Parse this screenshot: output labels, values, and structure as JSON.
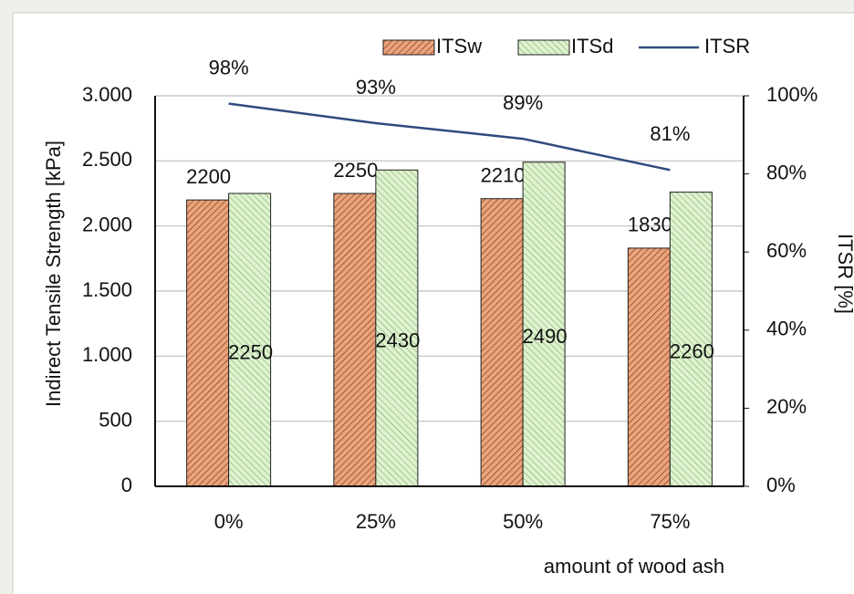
{
  "chart_data": {
    "type": "bar",
    "y_label": "Indirect  Tensile Strength   [kPa]",
    "y2_label": "ITSR [%]",
    "x_label": "amount of wood ash",
    "categories": [
      "0%",
      "25%",
      "50%",
      "75%"
    ],
    "series": [
      {
        "name": "ITSw",
        "color": "#e9a47c",
        "values": [
          2200,
          2250,
          2210,
          1830
        ]
      },
      {
        "name": "ITSd",
        "color": "#dff2cf",
        "values": [
          2250,
          2430,
          2490,
          2260
        ]
      },
      {
        "name": "ITSR",
        "type": "line",
        "axis": "y2",
        "color": "#2f4b7c",
        "values": [
          98,
          93,
          89,
          81
        ],
        "value_labels": [
          "98%",
          "93%",
          "89%",
          "81%"
        ]
      }
    ],
    "ylim": [
      0,
      3000
    ],
    "yticks": [
      0,
      500,
      {
        "value": 1000,
        "label": "1.000"
      },
      {
        "value": 1500,
        "label": "1.500"
      },
      {
        "value": 2000,
        "label": "2.000"
      },
      {
        "value": 2500,
        "label": "2.500"
      },
      {
        "value": 3000,
        "label": "3.000"
      }
    ],
    "y2lim": [
      0,
      100
    ],
    "y2ticks": [
      {
        "value": 0,
        "label": "0%"
      },
      {
        "value": 20,
        "label": "20%"
      },
      {
        "value": 40,
        "label": "40%"
      },
      {
        "value": 60,
        "label": "60%"
      },
      {
        "value": 80,
        "label": "80%"
      },
      {
        "value": 100,
        "label": "100%"
      }
    ],
    "grid": true,
    "legend": "top"
  }
}
